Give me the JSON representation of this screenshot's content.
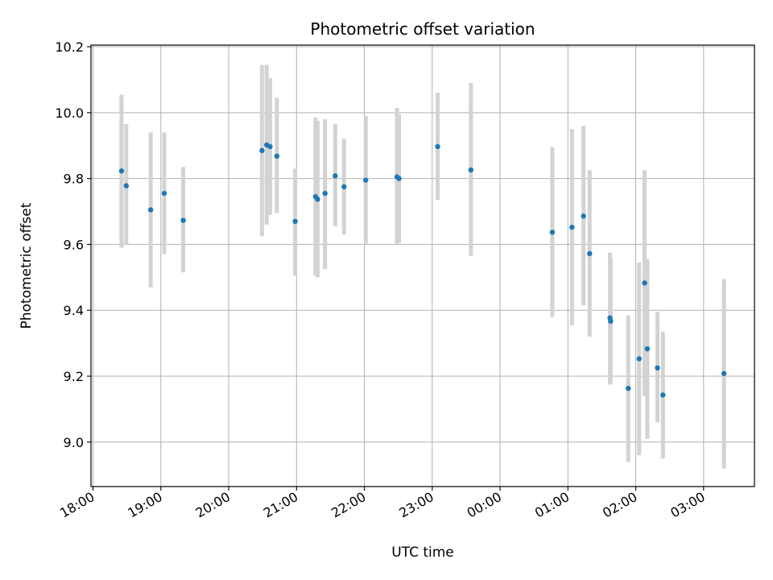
{
  "chart_data": {
    "type": "scatter",
    "title": "Photometric offset variation",
    "xlabel": "UTC time",
    "ylabel": "Photometric offset",
    "x_unit": "hours",
    "xlim": [
      17.97,
      27.75
    ],
    "ylim": [
      8.865,
      10.205
    ],
    "x_ticks": [
      {
        "value": 18,
        "label": "18:00"
      },
      {
        "value": 19,
        "label": "19:00"
      },
      {
        "value": 20,
        "label": "20:00"
      },
      {
        "value": 21,
        "label": "21:00"
      },
      {
        "value": 22,
        "label": "22:00"
      },
      {
        "value": 23,
        "label": "23:00"
      },
      {
        "value": 24,
        "label": "00:00"
      },
      {
        "value": 25,
        "label": "01:00"
      },
      {
        "value": 26,
        "label": "02:00"
      },
      {
        "value": 27,
        "label": "03:00"
      }
    ],
    "y_ticks": [
      {
        "value": 9.0,
        "label": "9.0"
      },
      {
        "value": 9.2,
        "label": "9.2"
      },
      {
        "value": 9.4,
        "label": "9.4"
      },
      {
        "value": 9.6,
        "label": "9.6"
      },
      {
        "value": 9.8,
        "label": "9.8"
      },
      {
        "value": 10.0,
        "label": "10.0"
      },
      {
        "value": 10.2,
        "label": "10.2"
      }
    ],
    "grid": true,
    "point_color": "#1f77b4",
    "errorbar_color": "#d3d3d3",
    "points": [
      {
        "x": 18.42,
        "y": 9.823,
        "low": 9.59,
        "high": 10.055
      },
      {
        "x": 18.49,
        "y": 9.778,
        "low": 9.6,
        "high": 9.965
      },
      {
        "x": 18.85,
        "y": 9.705,
        "low": 9.47,
        "high": 9.94
      },
      {
        "x": 19.05,
        "y": 9.755,
        "low": 9.57,
        "high": 9.94
      },
      {
        "x": 19.33,
        "y": 9.673,
        "low": 9.515,
        "high": 9.835
      },
      {
        "x": 20.49,
        "y": 9.885,
        "low": 9.625,
        "high": 10.145
      },
      {
        "x": 20.56,
        "y": 9.902,
        "low": 9.66,
        "high": 10.145
      },
      {
        "x": 20.61,
        "y": 9.897,
        "low": 9.69,
        "high": 10.105
      },
      {
        "x": 20.71,
        "y": 9.868,
        "low": 9.695,
        "high": 10.045
      },
      {
        "x": 20.98,
        "y": 9.67,
        "low": 9.505,
        "high": 9.83
      },
      {
        "x": 21.28,
        "y": 9.745,
        "low": 9.505,
        "high": 9.985
      },
      {
        "x": 21.31,
        "y": 9.737,
        "low": 9.5,
        "high": 9.975
      },
      {
        "x": 21.42,
        "y": 9.755,
        "low": 9.525,
        "high": 9.98
      },
      {
        "x": 21.57,
        "y": 9.808,
        "low": 9.655,
        "high": 9.965
      },
      {
        "x": 21.7,
        "y": 9.775,
        "low": 9.63,
        "high": 9.92
      },
      {
        "x": 22.02,
        "y": 9.795,
        "low": 9.6,
        "high": 9.99
      },
      {
        "x": 22.48,
        "y": 9.805,
        "low": 9.6,
        "high": 10.015
      },
      {
        "x": 22.51,
        "y": 9.8,
        "low": 9.605,
        "high": 9.995
      },
      {
        "x": 23.08,
        "y": 9.897,
        "low": 9.735,
        "high": 10.06
      },
      {
        "x": 23.57,
        "y": 9.826,
        "low": 9.565,
        "high": 10.09
      },
      {
        "x": 24.77,
        "y": 9.637,
        "low": 9.38,
        "high": 9.895
      },
      {
        "x": 25.06,
        "y": 9.652,
        "low": 9.355,
        "high": 9.95
      },
      {
        "x": 25.23,
        "y": 9.686,
        "low": 9.415,
        "high": 9.96
      },
      {
        "x": 25.32,
        "y": 9.572,
        "low": 9.32,
        "high": 9.825
      },
      {
        "x": 25.62,
        "y": 9.377,
        "low": 9.175,
        "high": 9.575
      },
      {
        "x": 25.63,
        "y": 9.367,
        "low": 9.175,
        "high": 9.56
      },
      {
        "x": 25.89,
        "y": 9.163,
        "low": 8.94,
        "high": 9.385
      },
      {
        "x": 26.05,
        "y": 9.253,
        "low": 8.96,
        "high": 9.545
      },
      {
        "x": 26.13,
        "y": 9.483,
        "low": 9.14,
        "high": 9.825
      },
      {
        "x": 26.17,
        "y": 9.283,
        "low": 9.01,
        "high": 9.555
      },
      {
        "x": 26.32,
        "y": 9.225,
        "low": 9.06,
        "high": 9.395
      },
      {
        "x": 26.4,
        "y": 9.143,
        "low": 8.95,
        "high": 9.335
      },
      {
        "x": 27.3,
        "y": 9.208,
        "low": 8.92,
        "high": 9.495
      }
    ]
  }
}
